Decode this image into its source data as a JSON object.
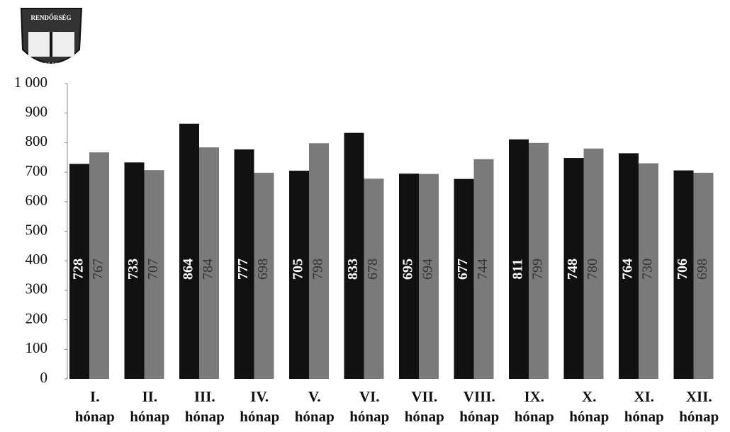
{
  "logo": {
    "top": "RENDŐRSÉG",
    "bottom": "POLICE"
  },
  "chart_data": {
    "type": "bar",
    "categories": [
      "I. hónap",
      "II. hónap",
      "III. hónap",
      "IV. hónap",
      "V. hónap",
      "VI. hónap",
      "VII. hónap",
      "VIII. hónap",
      "IX. hónap",
      "X. hónap",
      "XI. hónap",
      "XII. hónap"
    ],
    "series": [
      {
        "color": "#111111",
        "values": [
          728,
          733,
          864,
          777,
          705,
          833,
          695,
          677,
          811,
          748,
          764,
          706
        ]
      },
      {
        "color": "#7a7a7a",
        "values": [
          767,
          707,
          784,
          698,
          798,
          678,
          694,
          744,
          799,
          780,
          730,
          698
        ]
      }
    ],
    "ylim": [
      0,
      1000
    ],
    "yticks": [
      0,
      100,
      200,
      300,
      400,
      500,
      600,
      700,
      800,
      900,
      {
        "value": 1000,
        "label": "1 000"
      }
    ],
    "grid": false
  }
}
